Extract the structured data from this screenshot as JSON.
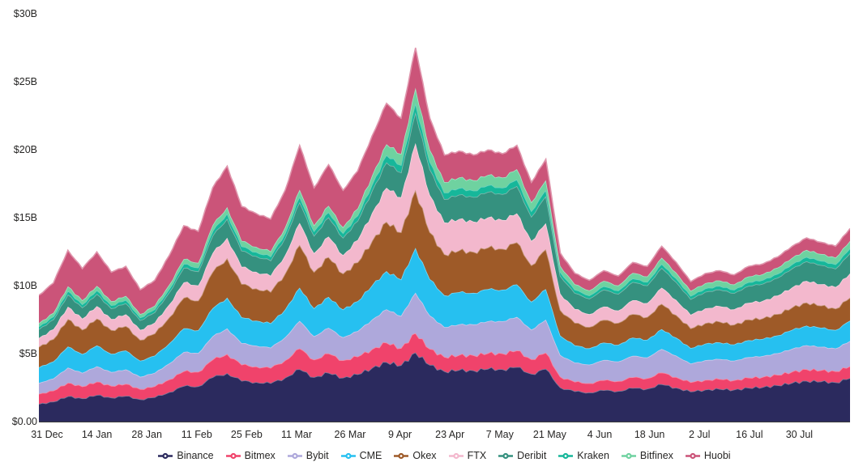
{
  "chart_data": {
    "type": "area",
    "stacked": true,
    "title": "",
    "ylabel": "",
    "xlabel": "",
    "unit": "USD billions",
    "ylim": [
      0,
      30
    ],
    "grid": false,
    "legend_position": "bottom",
    "y_ticks": [
      "$30B",
      "$25B",
      "$20B",
      "$15B",
      "$10B",
      "$5B",
      "$0.00"
    ],
    "x_ticks": [
      {
        "label": "31 Dec",
        "day": 0
      },
      {
        "label": "14 Jan",
        "day": 14
      },
      {
        "label": "28 Jan",
        "day": 28
      },
      {
        "label": "11 Feb",
        "day": 42
      },
      {
        "label": "25 Feb",
        "day": 56
      },
      {
        "label": "11 Mar",
        "day": 70
      },
      {
        "label": "26 Mar",
        "day": 85
      },
      {
        "label": "9 Apr",
        "day": 99
      },
      {
        "label": "23 Apr",
        "day": 113
      },
      {
        "label": "7 May",
        "day": 127
      },
      {
        "label": "21 May",
        "day": 141
      },
      {
        "label": "4 Jun",
        "day": 155
      },
      {
        "label": "18 Jun",
        "day": 169
      },
      {
        "label": "2 Jul",
        "day": 183
      },
      {
        "label": "16 Jul",
        "day": 197
      },
      {
        "label": "30 Jul",
        "day": 211
      }
    ],
    "x": [
      "31 Dec",
      "4 Jan",
      "8 Jan",
      "12 Jan",
      "16 Jan",
      "20 Jan",
      "24 Jan",
      "28 Jan",
      "1 Feb",
      "5 Feb",
      "9 Feb",
      "13 Feb",
      "17 Feb",
      "21 Feb",
      "25 Feb",
      "1 Mar",
      "5 Mar",
      "9 Mar",
      "13 Mar",
      "17 Mar",
      "21 Mar",
      "25 Mar",
      "29 Mar",
      "2 Apr",
      "6 Apr",
      "10 Apr",
      "14 Apr",
      "18 Apr",
      "22 Apr",
      "26 Apr",
      "30 Apr",
      "4 May",
      "8 May",
      "12 May",
      "16 May",
      "19 May",
      "21 May",
      "24 May",
      "28 May",
      "1 Jun",
      "5 Jun",
      "9 Jun",
      "13 Jun",
      "17 Jun",
      "21 Jun",
      "25 Jun",
      "29 Jun",
      "3 Jul",
      "7 Jul",
      "11 Jul",
      "15 Jul",
      "19 Jul",
      "23 Jul",
      "27 Jul",
      "31 Jul",
      "3 Aug",
      "5 Aug"
    ],
    "series": [
      {
        "name": "Binance",
        "color": "#2b2a5e",
        "values": [
          1.3,
          1.47,
          1.87,
          1.71,
          1.96,
          1.77,
          1.89,
          1.64,
          1.8,
          2.17,
          2.62,
          2.6,
          3.27,
          3.57,
          3.0,
          2.91,
          2.83,
          3.23,
          3.86,
          3.27,
          3.59,
          3.23,
          3.48,
          3.95,
          4.38,
          4.15,
          5.09,
          4.17,
          3.7,
          3.79,
          3.77,
          3.88,
          3.86,
          4.01,
          3.51,
          3.88,
          2.52,
          2.23,
          2.15,
          2.31,
          2.25,
          2.47,
          2.42,
          2.75,
          2.5,
          2.21,
          2.35,
          2.4,
          2.35,
          2.49,
          2.55,
          2.67,
          2.85,
          3.0,
          2.95,
          2.89,
          3.2
        ]
      },
      {
        "name": "Bitmex",
        "color": "#f0436b",
        "values": [
          0.74,
          0.81,
          0.99,
          0.88,
          0.98,
          0.86,
          0.89,
          0.75,
          0.8,
          0.93,
          1.09,
          1.06,
          1.29,
          1.41,
          1.19,
          1.15,
          1.12,
          1.28,
          1.52,
          1.29,
          1.42,
          1.28,
          1.3,
          1.38,
          1.43,
          1.26,
          1.43,
          1.18,
          1.06,
          1.1,
          1.11,
          1.15,
          1.16,
          1.22,
          1.08,
          1.2,
          0.79,
          0.7,
          0.68,
          0.74,
          0.73,
          0.79,
          0.77,
          0.86,
          0.78,
          0.68,
          0.72,
          0.73,
          0.7,
          0.74,
          0.75,
          0.77,
          0.82,
          0.85,
          0.83,
          0.81,
          0.88
        ]
      },
      {
        "name": "Bybit",
        "color": "#aea8db",
        "values": [
          0.8,
          0.89,
          1.11,
          1.0,
          1.13,
          1.01,
          1.06,
          0.91,
          0.99,
          1.18,
          1.41,
          1.38,
          1.72,
          1.88,
          1.58,
          1.53,
          1.49,
          1.7,
          2.03,
          1.72,
          1.89,
          1.7,
          1.87,
          2.17,
          2.45,
          2.37,
          2.97,
          2.45,
          2.19,
          2.26,
          2.27,
          2.35,
          2.36,
          2.47,
          2.17,
          2.42,
          1.58,
          1.41,
          1.36,
          1.48,
          1.44,
          1.58,
          1.53,
          1.73,
          1.57,
          1.37,
          1.45,
          1.47,
          1.43,
          1.51,
          1.53,
          1.59,
          1.69,
          1.77,
          1.72,
          1.68,
          1.85
        ]
      },
      {
        "name": "CME",
        "color": "#26c0f0",
        "values": [
          1.15,
          1.26,
          1.55,
          1.38,
          1.53,
          1.34,
          1.39,
          1.18,
          1.26,
          1.48,
          1.74,
          1.68,
          2.06,
          2.26,
          1.9,
          1.84,
          1.79,
          2.04,
          2.44,
          2.06,
          2.27,
          2.04,
          2.21,
          2.52,
          2.81,
          2.68,
          3.3,
          2.67,
          2.34,
          2.37,
          2.32,
          2.36,
          2.32,
          2.39,
          2.06,
          2.25,
          1.44,
          1.27,
          1.2,
          1.28,
          1.23,
          1.34,
          1.3,
          1.46,
          1.32,
          1.15,
          1.21,
          1.23,
          1.19,
          1.25,
          1.26,
          1.31,
          1.39,
          1.44,
          1.4,
          1.36,
          1.49
        ]
      },
      {
        "name": "Okex",
        "color": "#9e5a28",
        "values": [
          1.5,
          1.64,
          2.02,
          1.79,
          1.98,
          1.75,
          1.8,
          1.53,
          1.63,
          1.91,
          2.25,
          2.18,
          2.67,
          2.91,
          2.45,
          2.37,
          2.31,
          2.64,
          3.15,
          2.67,
          2.93,
          2.64,
          2.85,
          3.26,
          3.63,
          3.46,
          4.26,
          3.45,
          3.02,
          3.06,
          3.01,
          3.06,
          3.01,
          3.1,
          2.68,
          2.93,
          1.88,
          1.65,
          1.57,
          1.67,
          1.61,
          1.73,
          1.67,
          1.86,
          1.67,
          1.45,
          1.51,
          1.52,
          1.46,
          1.52,
          1.52,
          1.57,
          1.64,
          1.7,
          1.63,
          1.57,
          1.7
        ]
      },
      {
        "name": "FTX",
        "color": "#f3b8cd",
        "values": [
          0.65,
          0.72,
          0.91,
          0.82,
          0.92,
          0.81,
          0.86,
          0.74,
          0.8,
          0.95,
          1.13,
          1.11,
          1.38,
          1.5,
          1.26,
          1.22,
          1.19,
          1.36,
          1.62,
          1.38,
          1.51,
          1.36,
          1.64,
          2.06,
          2.5,
          2.59,
          3.44,
          2.73,
          2.34,
          2.32,
          2.23,
          2.21,
          2.12,
          2.13,
          1.8,
          1.92,
          1.2,
          1.02,
          0.94,
          0.98,
          0.91,
          1.02,
          1.03,
          1.19,
          1.11,
          1.0,
          1.09,
          1.14,
          1.13,
          1.23,
          1.28,
          1.36,
          1.48,
          1.59,
          1.58,
          1.58,
          1.78
        ]
      },
      {
        "name": "Deribit",
        "color": "#35917f",
        "values": [
          0.65,
          0.72,
          0.9,
          0.81,
          0.89,
          0.79,
          0.82,
          0.71,
          0.76,
          0.9,
          1.07,
          1.04,
          1.29,
          1.41,
          1.19,
          1.15,
          1.12,
          1.28,
          1.52,
          1.29,
          1.42,
          1.28,
          1.41,
          1.64,
          1.87,
          1.82,
          2.28,
          1.9,
          1.72,
          1.79,
          1.81,
          1.89,
          1.9,
          2.01,
          1.78,
          2.0,
          1.31,
          1.18,
          1.15,
          1.25,
          1.23,
          1.34,
          1.3,
          1.46,
          1.32,
          1.15,
          1.21,
          1.23,
          1.19,
          1.25,
          1.26,
          1.31,
          1.39,
          1.44,
          1.4,
          1.36,
          1.49
        ]
      },
      {
        "name": "Kraken",
        "color": "#16b79a",
        "values": [
          0.2,
          0.22,
          0.27,
          0.24,
          0.27,
          0.23,
          0.24,
          0.2,
          0.22,
          0.25,
          0.29,
          0.28,
          0.34,
          0.38,
          0.32,
          0.31,
          0.3,
          0.34,
          0.41,
          0.34,
          0.38,
          0.34,
          0.39,
          0.46,
          0.54,
          0.54,
          0.69,
          0.55,
          0.48,
          0.49,
          0.47,
          0.48,
          0.47,
          0.48,
          0.41,
          0.45,
          0.28,
          0.25,
          0.23,
          0.25,
          0.24,
          0.26,
          0.26,
          0.29,
          0.27,
          0.24,
          0.25,
          0.26,
          0.25,
          0.27,
          0.28,
          0.29,
          0.31,
          0.33,
          0.32,
          0.32,
          0.36
        ]
      },
      {
        "name": "Bitfinex",
        "color": "#6fd2a0",
        "values": [
          0.25,
          0.27,
          0.34,
          0.3,
          0.33,
          0.29,
          0.3,
          0.25,
          0.27,
          0.31,
          0.36,
          0.35,
          0.43,
          0.47,
          0.4,
          0.38,
          0.37,
          0.43,
          0.51,
          0.43,
          0.47,
          0.43,
          0.52,
          0.65,
          0.8,
          0.83,
          1.1,
          0.88,
          0.77,
          0.77,
          0.76,
          0.76,
          0.75,
          0.76,
          0.65,
          0.71,
          0.45,
          0.39,
          0.37,
          0.39,
          0.37,
          0.41,
          0.4,
          0.46,
          0.42,
          0.37,
          0.39,
          0.4,
          0.39,
          0.42,
          0.43,
          0.45,
          0.48,
          0.51,
          0.5,
          0.49,
          0.54
        ]
      },
      {
        "name": "Huobi",
        "color": "#cb5479",
        "values": [
          2.05,
          2.19,
          2.64,
          2.32,
          2.5,
          2.14,
          2.17,
          1.79,
          1.87,
          2.14,
          2.45,
          2.31,
          2.75,
          3.01,
          2.53,
          2.45,
          2.38,
          2.72,
          3.25,
          2.75,
          3.02,
          2.72,
          2.75,
          2.91,
          3.0,
          2.62,
          2.94,
          2.32,
          1.98,
          1.95,
          1.86,
          1.84,
          1.75,
          1.75,
          1.46,
          1.54,
          0.95,
          0.81,
          0.74,
          0.75,
          0.7,
          0.76,
          0.74,
          0.84,
          0.76,
          0.67,
          0.71,
          0.72,
          0.7,
          0.74,
          0.75,
          0.79,
          0.84,
          0.88,
          0.86,
          0.84,
          0.92
        ]
      }
    ]
  },
  "layout_colors": {
    "background": "#ffffff",
    "axis_line": "#3a3a3a",
    "text": "#272625"
  }
}
